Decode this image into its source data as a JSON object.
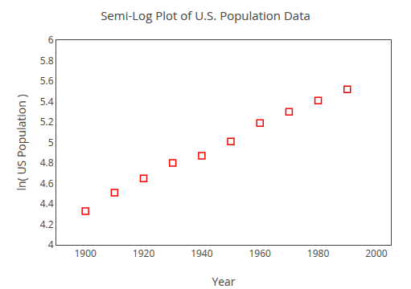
{
  "chart_data": {
    "type": "scatter",
    "title": "Semi-Log Plot of U.S. Population Data",
    "x_label": "Year",
    "y_label": "ln( US Population )",
    "x": [
      1900,
      1910,
      1920,
      1930,
      1940,
      1950,
      1960,
      1970,
      1980,
      1990
    ],
    "values": [
      4.33,
      4.51,
      4.65,
      4.8,
      4.87,
      5.01,
      5.19,
      5.3,
      5.41,
      5.52
    ],
    "color": "red",
    "marker": "square-open",
    "xlim": [
      1890,
      2005
    ],
    "ylim": [
      4,
      6
    ],
    "xticks": [
      1900,
      1920,
      1940,
      1960,
      1980,
      2000
    ],
    "yticks": [
      4,
      4.2,
      4.4,
      4.6,
      4.8,
      5,
      5.2,
      5.4,
      5.6,
      5.8,
      6
    ],
    "grid": false
  }
}
